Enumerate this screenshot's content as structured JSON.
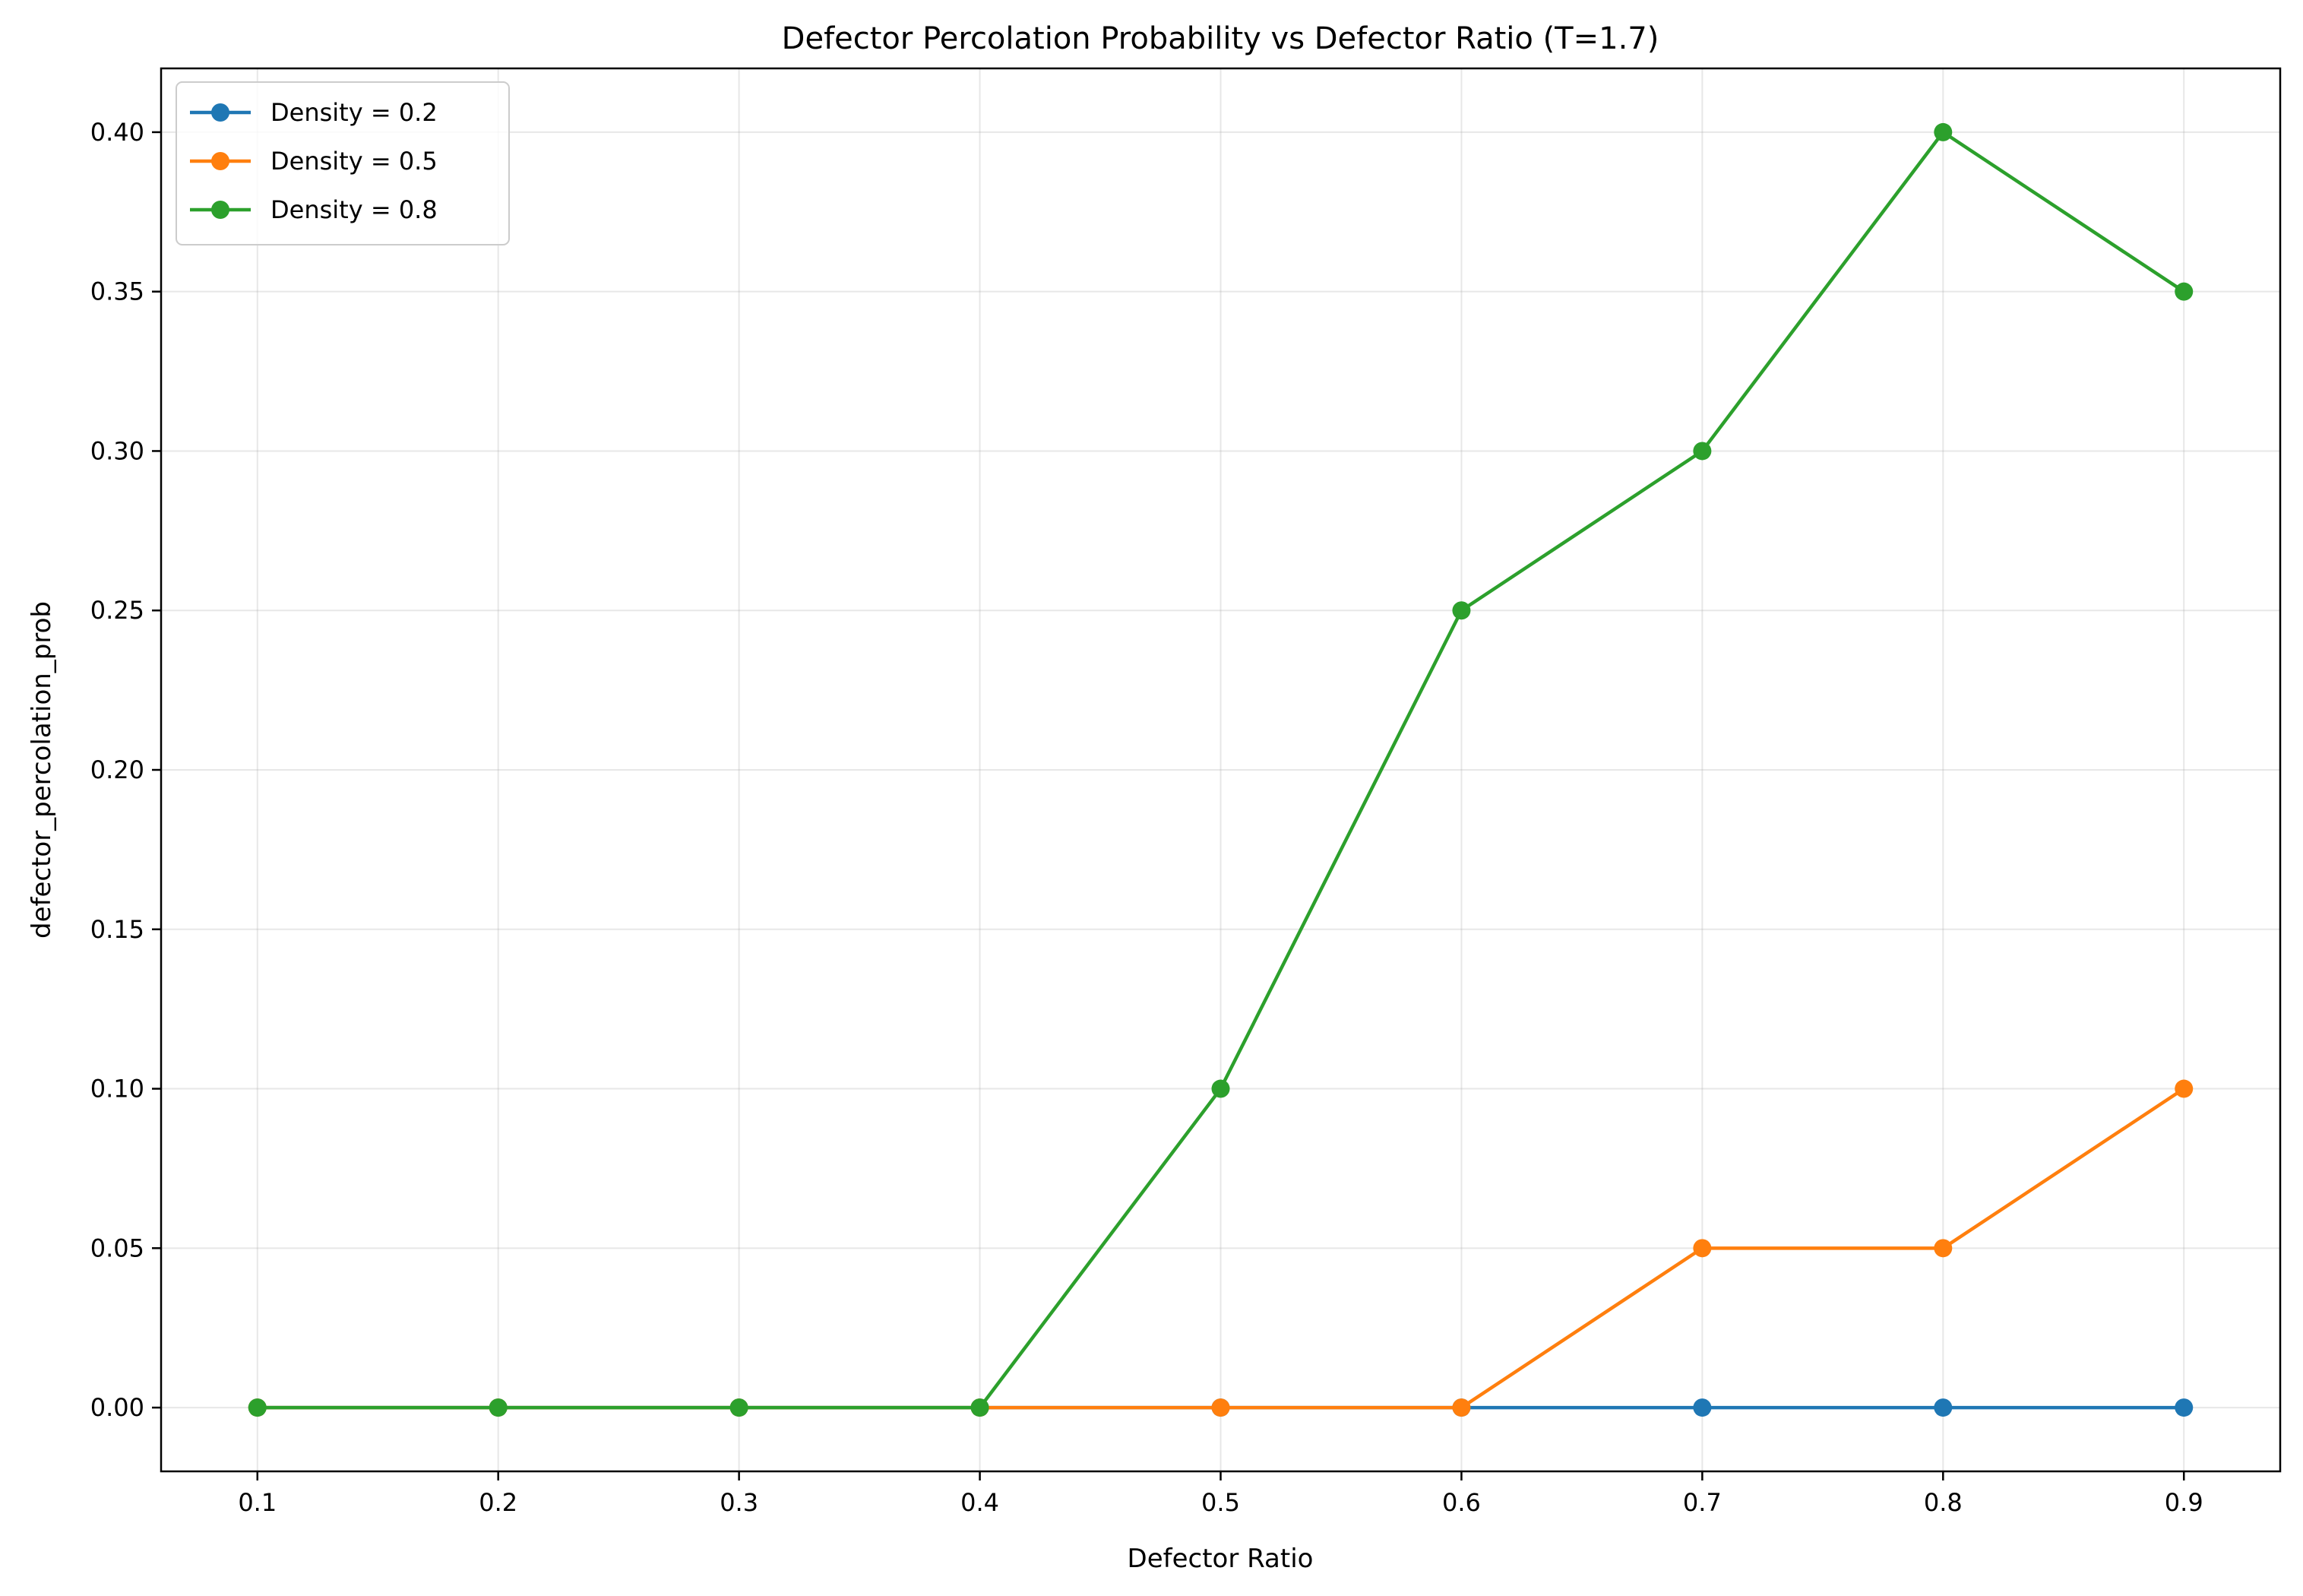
{
  "chart_data": {
    "type": "line",
    "title": "Defector Percolation Probability vs Defector Ratio (T=1.7)",
    "xlabel": "Defector Ratio",
    "ylabel": "defector_percolation_prob",
    "x": [
      0.1,
      0.2,
      0.3,
      0.4,
      0.5,
      0.6,
      0.7,
      0.8,
      0.9
    ],
    "xlim": [
      0.06,
      0.94
    ],
    "ylim": [
      -0.02,
      0.42
    ],
    "xticks": [
      "0.1",
      "0.2",
      "0.3",
      "0.4",
      "0.5",
      "0.6",
      "0.7",
      "0.8",
      "0.9"
    ],
    "yticks": [
      "0.00",
      "0.05",
      "0.10",
      "0.15",
      "0.20",
      "0.25",
      "0.30",
      "0.35",
      "0.40"
    ],
    "grid": true,
    "legend_position": "top-left",
    "series": [
      {
        "name": "Density = 0.2",
        "color": "#1f77b4",
        "values": [
          0,
          0,
          0,
          0,
          0,
          0,
          0,
          0,
          0
        ]
      },
      {
        "name": "Density = 0.5",
        "color": "#ff7f0e",
        "values": [
          0,
          0,
          0,
          0,
          0,
          0,
          0.05,
          0.05,
          0.1
        ]
      },
      {
        "name": "Density = 0.8",
        "color": "#2ca02c",
        "values": [
          0,
          0,
          0,
          0,
          0.1,
          0.25,
          0.3,
          0.4,
          0.35
        ]
      }
    ]
  }
}
